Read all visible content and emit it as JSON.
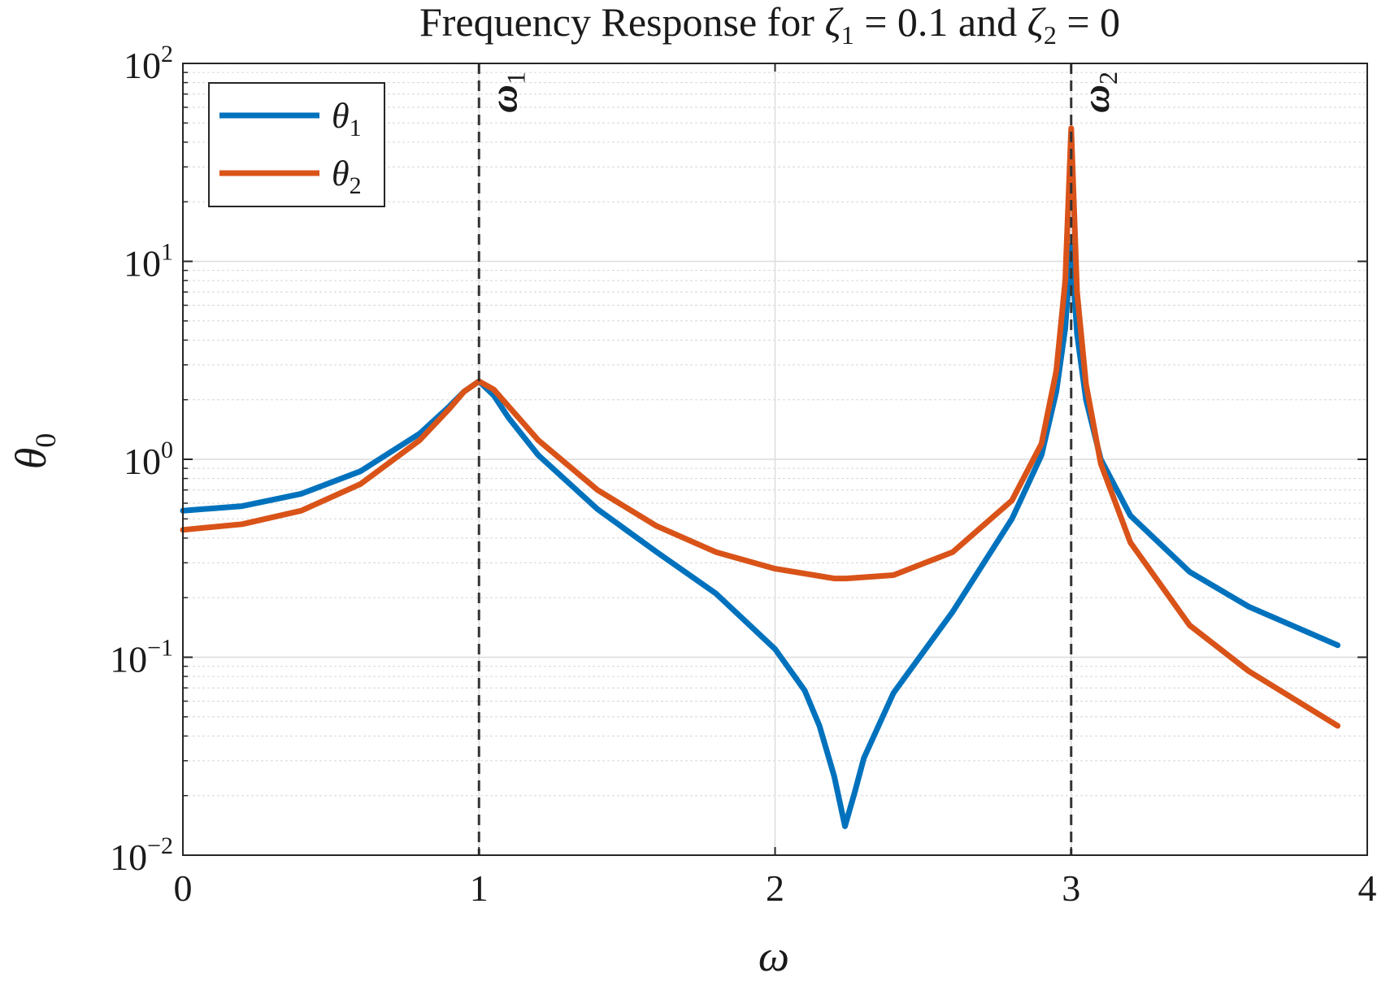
{
  "chart_data": {
    "type": "line",
    "title": "Frequency Response for ζ₁ = 0.1 and ζ₂ = 0",
    "title_parts": {
      "prefix": "Frequency Response for ",
      "zeta": "ζ",
      "sub1": "1",
      "mid": " = 0.1 and ",
      "sub2": "2",
      "suffix": " = 0"
    },
    "xlabel": "ω",
    "ylabel": {
      "base": "θ",
      "sub": "0"
    },
    "xlim": [
      0,
      4
    ],
    "ylim": [
      0.01,
      100
    ],
    "yscale": "log",
    "x_ticks": [
      "0",
      "1",
      "2",
      "3",
      "4"
    ],
    "y_ticks": [
      {
        "value": 0.01,
        "base": "10",
        "exp": "−2"
      },
      {
        "value": 0.1,
        "base": "10",
        "exp": "−1"
      },
      {
        "value": 1,
        "base": "10",
        "exp": "0"
      },
      {
        "value": 10,
        "base": "10",
        "exp": "1"
      },
      {
        "value": 100,
        "base": "10",
        "exp": "2"
      }
    ],
    "grid": true,
    "minor_grid_y": true,
    "legend_position": "top-left",
    "series": [
      {
        "name": "θ₁",
        "legend_base": "θ",
        "legend_sub": "1",
        "color": "#0072BD",
        "x": [
          0,
          0.2,
          0.4,
          0.6,
          0.8,
          0.9,
          0.95,
          1.0,
          1.05,
          1.1,
          1.2,
          1.4,
          1.6,
          1.8,
          2.0,
          2.1,
          2.15,
          2.2,
          2.236,
          2.27,
          2.3,
          2.4,
          2.6,
          2.8,
          2.9,
          2.95,
          2.98,
          3.0,
          3.02,
          3.05,
          3.1,
          3.2,
          3.4,
          3.6,
          3.9
        ],
        "y": [
          0.55,
          0.58,
          0.67,
          0.87,
          1.35,
          1.85,
          2.2,
          2.48,
          2.1,
          1.62,
          1.05,
          0.56,
          0.34,
          0.21,
          0.11,
          0.068,
          0.045,
          0.025,
          0.014,
          0.021,
          0.031,
          0.066,
          0.17,
          0.5,
          1.05,
          2.2,
          4.6,
          12,
          4.3,
          2.0,
          1.0,
          0.52,
          0.27,
          0.18,
          0.115
        ]
      },
      {
        "name": "θ₂",
        "legend_base": "θ",
        "legend_sub": "2",
        "color": "#D95319",
        "x": [
          0,
          0.2,
          0.4,
          0.6,
          0.8,
          0.9,
          0.95,
          1.0,
          1.05,
          1.1,
          1.2,
          1.4,
          1.6,
          1.8,
          2.0,
          2.2,
          2.24,
          2.4,
          2.6,
          2.8,
          2.9,
          2.95,
          2.98,
          3.0,
          3.02,
          3.05,
          3.1,
          3.2,
          3.4,
          3.6,
          3.9
        ],
        "y": [
          0.44,
          0.47,
          0.55,
          0.75,
          1.25,
          1.8,
          2.2,
          2.48,
          2.25,
          1.85,
          1.25,
          0.7,
          0.46,
          0.34,
          0.28,
          0.25,
          0.25,
          0.26,
          0.34,
          0.62,
          1.2,
          2.8,
          8,
          47,
          7,
          2.4,
          0.95,
          0.38,
          0.145,
          0.085,
          0.045
        ]
      }
    ],
    "vertical_lines": [
      {
        "x": 1,
        "label_base": "ω",
        "label_sub": "1"
      },
      {
        "x": 3,
        "label_base": "ω",
        "label_sub": "2"
      }
    ]
  }
}
